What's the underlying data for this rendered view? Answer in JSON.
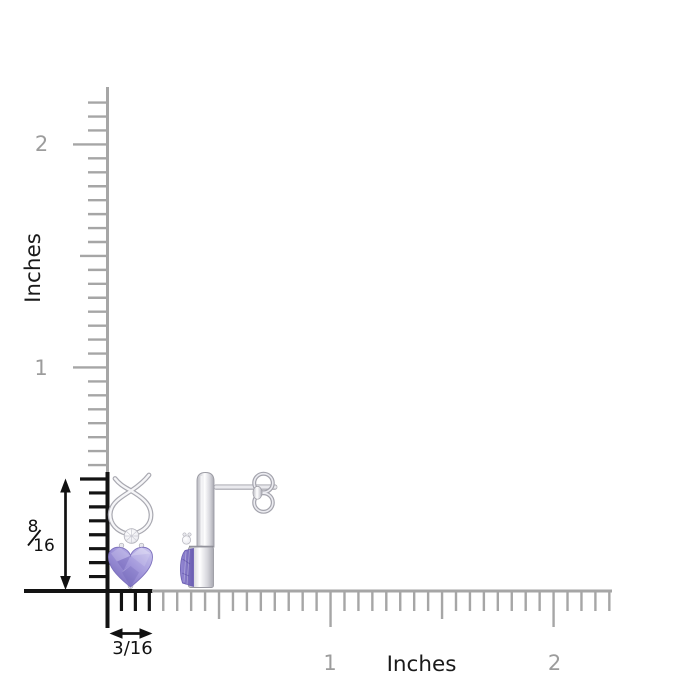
{
  "diagram": {
    "description": "Heart-shaped tanzanite and diamond cross stud earrings (front and side view) shown against inch rulers",
    "views": [
      "front-view-earring",
      "side-view-earring"
    ]
  },
  "vertical_ruler": {
    "axis_label": "Inches",
    "tick_labels": [
      "1",
      "2"
    ],
    "tick_step_inches": 0.0625
  },
  "horizontal_ruler": {
    "axis_label": "Inches",
    "tick_labels": [
      "1",
      "2"
    ],
    "tick_step_inches": 0.0625
  },
  "measurements": {
    "height": {
      "numerator": "8",
      "denominator": "16",
      "label": "8/16",
      "value_inches": 0.5
    },
    "width": {
      "label": "3/16",
      "value_inches": 0.1875
    }
  },
  "colors": {
    "ruler_gray": "#a6a6a6",
    "label_gray": "#9c9c9c",
    "highlight_black": "#131313",
    "metal_outline": "#a9a9b1",
    "metal_light": "#f6f6f8",
    "tanzanite": "#9185d2",
    "tanzanite_light": "#cdc8f0",
    "tanzanite_dark": "#6b5fb2",
    "diamond_white": "#ffffff"
  }
}
